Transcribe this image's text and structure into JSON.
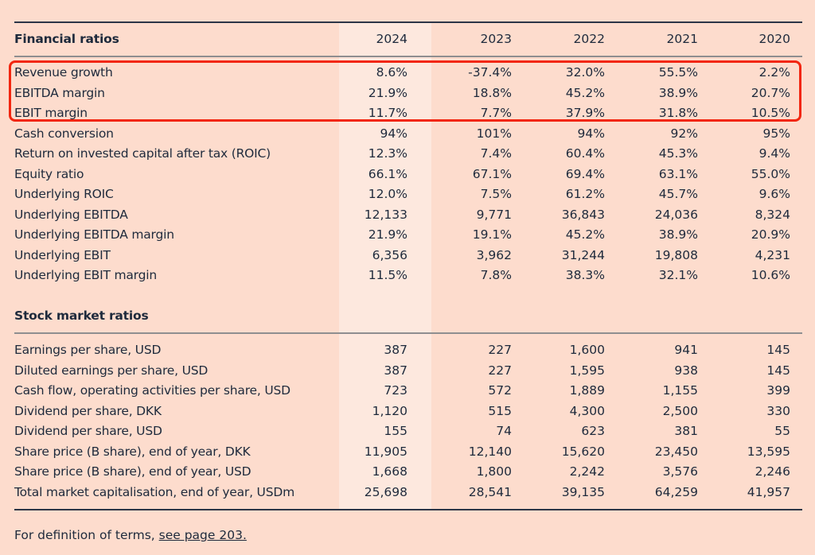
{
  "years": [
    "2024",
    "2023",
    "2022",
    "2021",
    "2020"
  ],
  "financial": {
    "title": "Financial ratios",
    "rows": [
      {
        "label": "Revenue growth",
        "values": [
          "8.6%",
          "-37.4%",
          "32.0%",
          "55.5%",
          "2.2%"
        ]
      },
      {
        "label": "EBITDA margin",
        "values": [
          "21.9%",
          "18.8%",
          "45.2%",
          "38.9%",
          "20.7%"
        ]
      },
      {
        "label": "EBIT margin",
        "values": [
          "11.7%",
          "7.7%",
          "37.9%",
          "31.8%",
          "10.5%"
        ]
      },
      {
        "label": "Cash conversion",
        "values": [
          "94%",
          "101%",
          "94%",
          "92%",
          "95%"
        ]
      },
      {
        "label": "Return on invested capital after tax (ROIC)",
        "values": [
          "12.3%",
          "7.4%",
          "60.4%",
          "45.3%",
          "9.4%"
        ]
      },
      {
        "label": "Equity ratio",
        "values": [
          "66.1%",
          "67.1%",
          "69.4%",
          "63.1%",
          "55.0%"
        ]
      },
      {
        "label": "Underlying ROIC",
        "values": [
          "12.0%",
          "7.5%",
          "61.2%",
          "45.7%",
          "9.6%"
        ]
      },
      {
        "label": "Underlying EBITDA",
        "values": [
          "12,133",
          "9,771",
          "36,843",
          "24,036",
          "8,324"
        ]
      },
      {
        "label": "Underlying EBITDA margin",
        "values": [
          "21.9%",
          "19.1%",
          "45.2%",
          "38.9%",
          "20.9%"
        ]
      },
      {
        "label": "Underlying EBIT",
        "values": [
          "6,356",
          "3,962",
          "31,244",
          "19,808",
          "4,231"
        ]
      },
      {
        "label": "Underlying EBIT margin",
        "values": [
          "11.5%",
          "7.8%",
          "38.3%",
          "32.1%",
          "10.6%"
        ]
      }
    ]
  },
  "stock": {
    "title": "Stock market ratios",
    "rows": [
      {
        "label": "Earnings per share, USD",
        "values": [
          "387",
          "227",
          "1,600",
          "941",
          "145"
        ]
      },
      {
        "label": "Diluted earnings per share, USD",
        "values": [
          "387",
          "227",
          "1,595",
          "938",
          "145"
        ]
      },
      {
        "label": "Cash flow, operating activities per share, USD",
        "values": [
          "723",
          "572",
          "1,889",
          "1,155",
          "399"
        ]
      },
      {
        "label": "Dividend per share, DKK",
        "values": [
          "1,120",
          "515",
          "4,300",
          "2,500",
          "330"
        ]
      },
      {
        "label": "Dividend per share, USD",
        "values": [
          "155",
          "74",
          "623",
          "381",
          "55"
        ]
      },
      {
        "label": "Share price (B share), end of year, DKK",
        "values": [
          "11,905",
          "12,140",
          "15,620",
          "23,450",
          "13,595"
        ]
      },
      {
        "label": "Share price (B share), end of year, USD",
        "values": [
          "1,668",
          "1,800",
          "2,242",
          "3,576",
          "2,246"
        ]
      },
      {
        "label": "Total market capitalisation, end of year, USDm",
        "values": [
          "25,698",
          "28,541",
          "39,135",
          "64,259",
          "41,957"
        ]
      }
    ]
  },
  "footnote": {
    "text": "For definition of terms, ",
    "link": "see page 203."
  },
  "colors": {
    "background": "#fddccd",
    "highlight_column": "#fde8de",
    "text": "#1e2a3c",
    "annotation_box": "#f2260f"
  }
}
